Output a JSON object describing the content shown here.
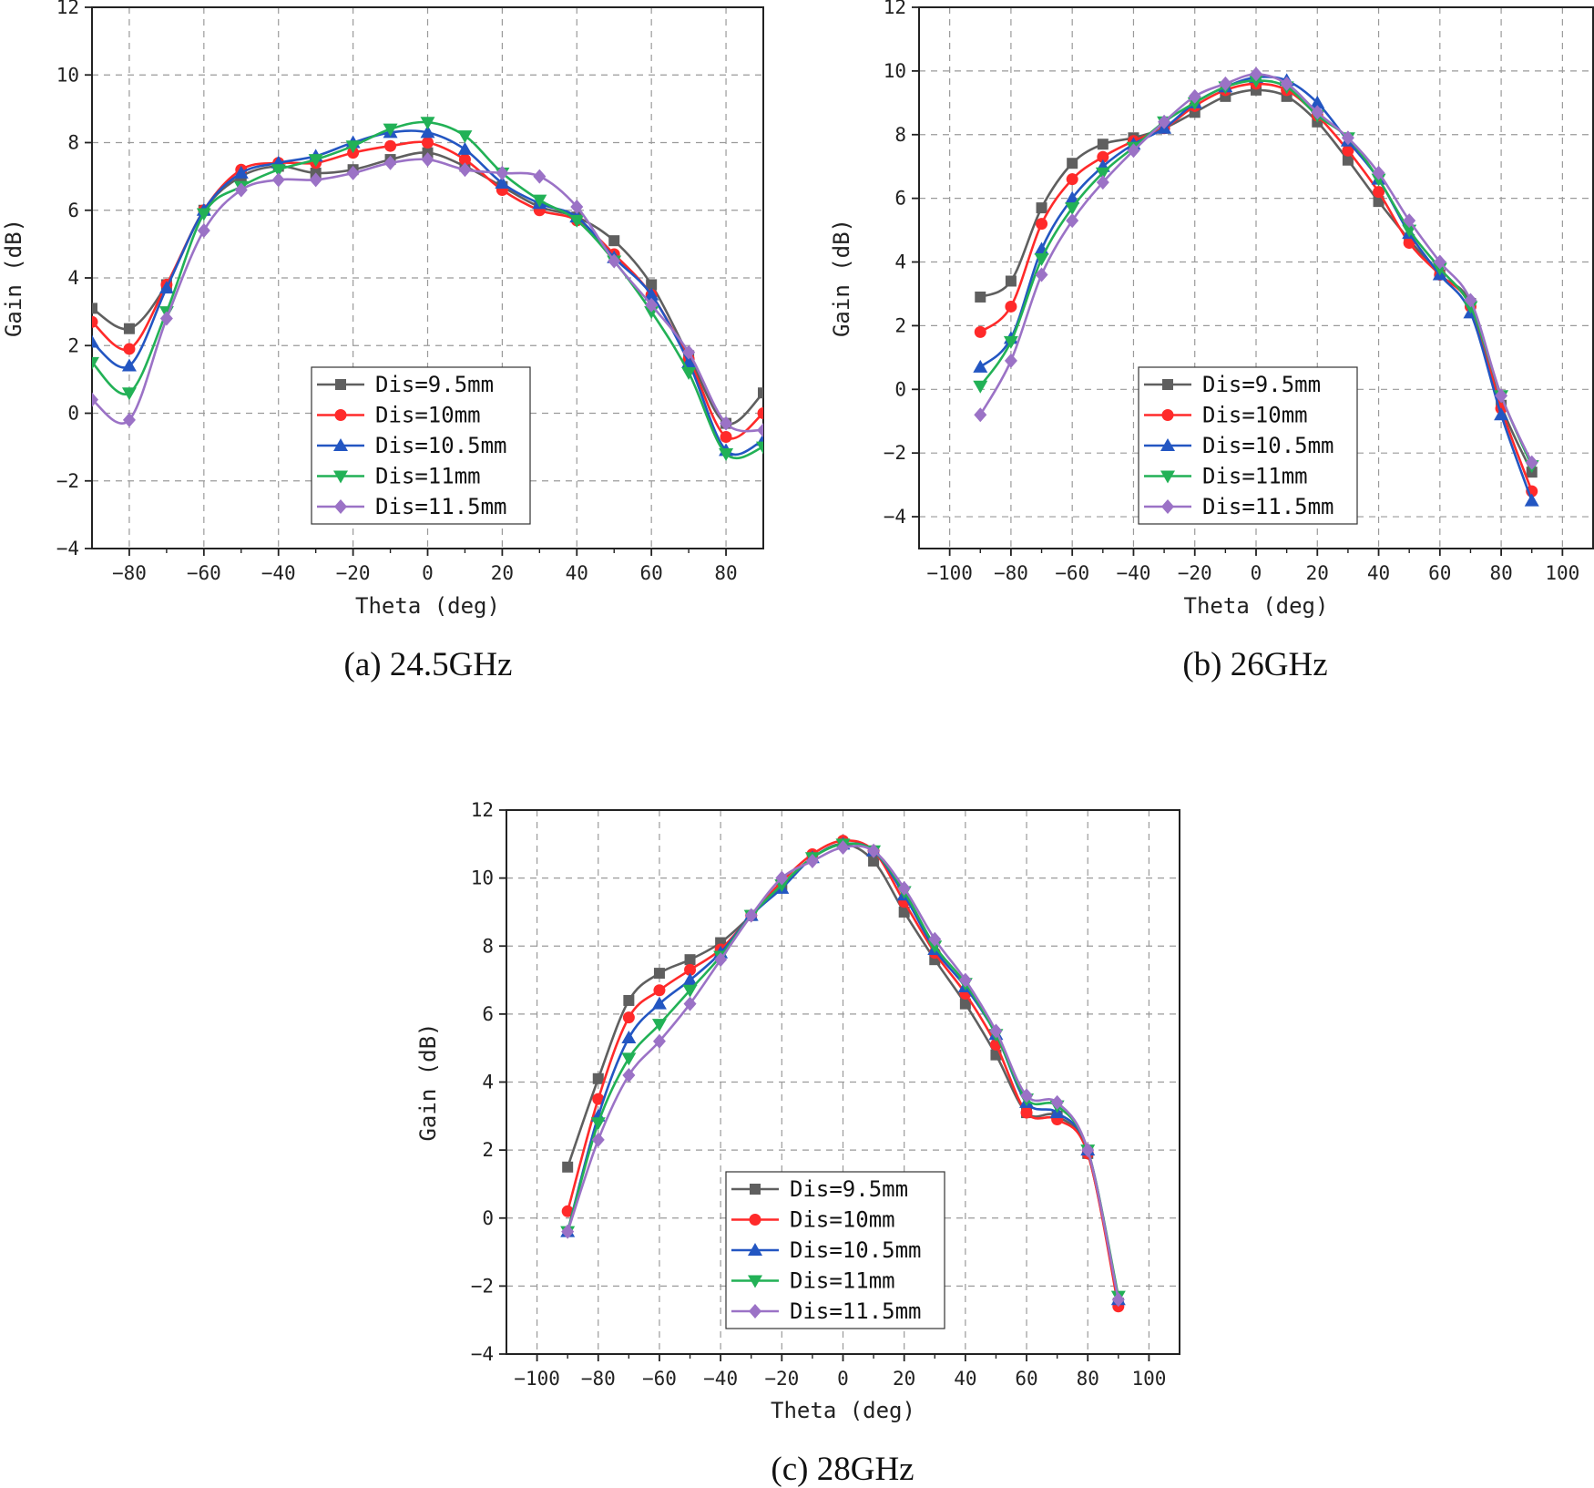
{
  "chart_data": [
    {
      "type": "line",
      "caption": "(a) 24.5GHz",
      "xlabel": "Theta (deg)",
      "ylabel": "Gain (dB)",
      "xlim": [
        -90,
        90
      ],
      "ylim": [
        -4,
        12
      ],
      "xticks": [
        -80,
        -60,
        -40,
        -20,
        0,
        20,
        40,
        60,
        80
      ],
      "yticks": [
        -4,
        -2,
        0,
        2,
        4,
        6,
        8,
        10,
        12
      ],
      "grid": true,
      "legend_position": "bottom-center",
      "x": [
        -90,
        -80,
        -70,
        -60,
        -50,
        -40,
        -30,
        -20,
        -10,
        0,
        10,
        20,
        30,
        40,
        50,
        60,
        70,
        80,
        90
      ],
      "series": [
        {
          "name": "Dis=9.5mm",
          "color": "#5f5f5f",
          "marker": "square",
          "values": [
            3.1,
            2.5,
            3.8,
            6.0,
            7.0,
            7.3,
            7.1,
            7.2,
            7.5,
            7.7,
            7.3,
            6.7,
            6.1,
            5.8,
            5.1,
            3.8,
            1.7,
            -0.3,
            0.6
          ]
        },
        {
          "name": "Dis=10mm",
          "color": "#ff2a2a",
          "marker": "circle",
          "values": [
            2.7,
            1.9,
            3.8,
            6.0,
            7.2,
            7.4,
            7.4,
            7.7,
            7.9,
            8.0,
            7.5,
            6.6,
            6.0,
            5.7,
            4.7,
            3.5,
            1.6,
            -0.7,
            0.0
          ]
        },
        {
          "name": "Dis=10.5mm",
          "color": "#2356c2",
          "marker": "triangle-up",
          "values": [
            2.1,
            1.4,
            3.7,
            6.0,
            7.1,
            7.4,
            7.6,
            8.0,
            8.3,
            8.3,
            7.8,
            6.8,
            6.2,
            5.8,
            4.6,
            3.5,
            1.5,
            -1.1,
            -0.8
          ]
        },
        {
          "name": "Dis=11mm",
          "color": "#22b156",
          "marker": "triangle-down",
          "values": [
            1.5,
            0.6,
            3.0,
            5.9,
            6.7,
            7.2,
            7.5,
            7.9,
            8.4,
            8.6,
            8.2,
            7.1,
            6.3,
            5.7,
            4.5,
            3.0,
            1.2,
            -1.2,
            -1.0
          ]
        },
        {
          "name": "Dis=11.5mm",
          "color": "#9b72c6",
          "marker": "diamond",
          "values": [
            0.4,
            -0.2,
            2.8,
            5.4,
            6.6,
            6.9,
            6.9,
            7.1,
            7.4,
            7.5,
            7.2,
            7.1,
            7.0,
            6.1,
            4.5,
            3.2,
            1.8,
            -0.3,
            -0.5
          ]
        }
      ]
    },
    {
      "type": "line",
      "caption": "(b) 26GHz",
      "xlabel": "Theta (deg)",
      "ylabel": "Gain (dB)",
      "xlim": [
        -110,
        110
      ],
      "ylim": [
        -5,
        12
      ],
      "xticks": [
        -100,
        -80,
        -60,
        -40,
        -20,
        0,
        20,
        40,
        60,
        80,
        100
      ],
      "yticks": [
        -4,
        -2,
        0,
        2,
        4,
        6,
        8,
        10,
        12
      ],
      "grid": true,
      "legend_position": "bottom-left",
      "x": [
        -90,
        -80,
        -70,
        -60,
        -50,
        -40,
        -30,
        -20,
        -10,
        0,
        10,
        20,
        30,
        40,
        50,
        60,
        70,
        80,
        90
      ],
      "series": [
        {
          "name": "Dis=9.5mm",
          "color": "#5f5f5f",
          "marker": "square",
          "values": [
            2.9,
            3.4,
            5.7,
            7.1,
            7.7,
            7.9,
            8.2,
            8.7,
            9.2,
            9.4,
            9.2,
            8.4,
            7.2,
            5.9,
            4.7,
            3.6,
            2.7,
            -0.5,
            -2.6
          ]
        },
        {
          "name": "Dis=10mm",
          "color": "#ff2a2a",
          "marker": "circle",
          "values": [
            1.8,
            2.6,
            5.2,
            6.6,
            7.3,
            7.8,
            8.2,
            8.9,
            9.4,
            9.6,
            9.4,
            8.6,
            7.5,
            6.2,
            4.6,
            3.6,
            2.6,
            -0.6,
            -3.2
          ]
        },
        {
          "name": "Dis=10.5mm",
          "color": "#2356c2",
          "marker": "triangle-up",
          "values": [
            0.7,
            1.6,
            4.4,
            6.0,
            7.0,
            7.7,
            8.2,
            9.0,
            9.5,
            9.8,
            9.7,
            9.0,
            7.8,
            6.6,
            4.9,
            3.6,
            2.4,
            -0.8,
            -3.5
          ]
        },
        {
          "name": "Dis=11mm",
          "color": "#22b156",
          "marker": "triangle-down",
          "values": [
            0.1,
            1.5,
            4.1,
            5.7,
            6.8,
            7.6,
            8.4,
            9.0,
            9.5,
            9.7,
            9.5,
            8.6,
            7.9,
            6.6,
            5.0,
            3.8,
            2.6,
            -0.2,
            -2.4
          ]
        },
        {
          "name": "Dis=11.5mm",
          "color": "#9b72c6",
          "marker": "diamond",
          "values": [
            -0.8,
            0.9,
            3.6,
            5.3,
            6.5,
            7.5,
            8.4,
            9.2,
            9.6,
            9.9,
            9.6,
            8.7,
            7.9,
            6.8,
            5.3,
            4.0,
            2.8,
            -0.2,
            -2.3
          ]
        }
      ]
    },
    {
      "type": "line",
      "caption": "(c) 28GHz",
      "xlabel": "Theta (deg)",
      "ylabel": "Gain (dB)",
      "xlim": [
        -110,
        110
      ],
      "ylim": [
        -4,
        12
      ],
      "xticks": [
        -100,
        -80,
        -60,
        -40,
        -20,
        0,
        20,
        40,
        60,
        80,
        100
      ],
      "yticks": [
        -4,
        -2,
        0,
        2,
        4,
        6,
        8,
        10,
        12
      ],
      "grid": true,
      "legend_position": "bottom-center",
      "x": [
        -90,
        -80,
        -70,
        -60,
        -50,
        -40,
        -30,
        -20,
        -10,
        0,
        10,
        20,
        30,
        40,
        50,
        60,
        70,
        80,
        90
      ],
      "series": [
        {
          "name": "Dis=9.5mm",
          "color": "#5f5f5f",
          "marker": "square",
          "values": [
            1.5,
            4.1,
            6.4,
            7.2,
            7.6,
            8.1,
            8.9,
            9.8,
            10.6,
            11.0,
            10.5,
            9.0,
            7.6,
            6.3,
            4.8,
            3.1,
            3.0,
            1.9,
            -2.5
          ]
        },
        {
          "name": "Dis=10mm",
          "color": "#ff2a2a",
          "marker": "circle",
          "values": [
            0.2,
            3.5,
            5.9,
            6.7,
            7.3,
            7.9,
            8.9,
            9.9,
            10.7,
            11.1,
            10.8,
            9.3,
            7.8,
            6.6,
            5.1,
            3.1,
            2.9,
            1.9,
            -2.6
          ]
        },
        {
          "name": "Dis=10.5mm",
          "color": "#2356c2",
          "marker": "triangle-up",
          "values": [
            -0.4,
            3.0,
            5.3,
            6.3,
            7.0,
            7.8,
            8.9,
            9.7,
            10.6,
            11.0,
            10.8,
            9.5,
            7.9,
            6.8,
            5.4,
            3.4,
            3.1,
            2.0,
            -2.4
          ]
        },
        {
          "name": "Dis=11mm",
          "color": "#22b156",
          "marker": "triangle-down",
          "values": [
            -0.4,
            2.8,
            4.7,
            5.7,
            6.7,
            7.7,
            8.9,
            9.8,
            10.6,
            11.0,
            10.8,
            9.6,
            8.0,
            6.9,
            5.4,
            3.5,
            3.3,
            2.0,
            -2.3
          ]
        },
        {
          "name": "Dis=11.5mm",
          "color": "#9b72c6",
          "marker": "diamond",
          "values": [
            -0.4,
            2.3,
            4.2,
            5.2,
            6.3,
            7.6,
            8.9,
            10.0,
            10.5,
            10.9,
            10.8,
            9.7,
            8.2,
            7.0,
            5.5,
            3.6,
            3.4,
            2.0,
            -2.4
          ]
        }
      ]
    }
  ]
}
